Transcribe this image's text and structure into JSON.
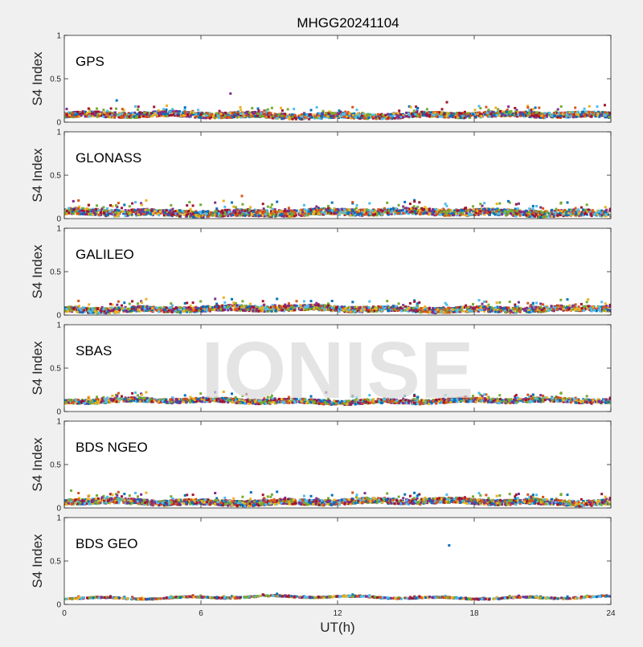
{
  "figure_title": "MHGG20241104",
  "watermark": "IONISE",
  "colors": {
    "background": "#f0f0f0",
    "axes_bg": "#ffffff",
    "watermark": "#d9d9d9",
    "series": [
      "#0072bd",
      "#d95319",
      "#edb120",
      "#7e2f8e",
      "#77ac30",
      "#4dbeee",
      "#a2142f"
    ]
  },
  "chart_data": [
    {
      "type": "scatter",
      "label": "GPS",
      "ylabel": "S4 Index",
      "xlabel": "",
      "xlim": [
        0,
        24
      ],
      "ylim": [
        0,
        1
      ],
      "yticks": [
        "0",
        "0.5",
        "1"
      ],
      "xticks": [],
      "baseline": 0.08,
      "spread": 0.05,
      "density": 2200,
      "outliers": [
        {
          "x": 2.3,
          "y": 0.25
        },
        {
          "x": 7.3,
          "y": 0.33
        },
        {
          "x": 16.8,
          "y": 0.23
        },
        {
          "x": 4.5,
          "y": 0.19
        },
        {
          "x": 23.4,
          "y": 0.18
        }
      ]
    },
    {
      "type": "scatter",
      "label": "GLONASS",
      "ylabel": "S4 Index",
      "xlabel": "",
      "xlim": [
        0,
        24
      ],
      "ylim": [
        0,
        1
      ],
      "yticks": [
        "0",
        "0.5",
        "1"
      ],
      "xticks": [],
      "baseline": 0.07,
      "spread": 0.06,
      "density": 2200,
      "outliers": [
        {
          "x": 7.8,
          "y": 0.26
        },
        {
          "x": 5.5,
          "y": 0.19
        },
        {
          "x": 19.5,
          "y": 0.2
        },
        {
          "x": 0.4,
          "y": 0.2
        }
      ]
    },
    {
      "type": "scatter",
      "label": "GALILEO",
      "ylabel": "S4 Index",
      "xlabel": "",
      "xlim": [
        0,
        24
      ],
      "ylim": [
        0,
        1
      ],
      "yticks": [
        "0",
        "0.5",
        "1"
      ],
      "xticks": [],
      "baseline": 0.07,
      "spread": 0.05,
      "density": 2000,
      "outliers": [
        {
          "x": 23.0,
          "y": 0.18
        },
        {
          "x": 23.6,
          "y": 0.15
        },
        {
          "x": 10.2,
          "y": 0.16
        }
      ]
    },
    {
      "type": "scatter",
      "label": "SBAS",
      "ylabel": "S4 Index",
      "xlabel": "",
      "xlim": [
        0,
        24
      ],
      "ylim": [
        0,
        1
      ],
      "yticks": [
        "0",
        "0.5",
        "1"
      ],
      "xticks": [],
      "baseline": 0.12,
      "spread": 0.04,
      "density": 1800,
      "outliers": [
        {
          "x": 11.5,
          "y": 0.22
        },
        {
          "x": 8.0,
          "y": 0.2
        }
      ]
    },
    {
      "type": "scatter",
      "label": "BDS NGEO",
      "ylabel": "S4 Index",
      "xlabel": "",
      "xlim": [
        0,
        24
      ],
      "ylim": [
        0,
        1
      ],
      "yticks": [
        "0",
        "0.5",
        "1"
      ],
      "xticks": [],
      "baseline": 0.07,
      "spread": 0.05,
      "density": 2200,
      "outliers": [
        {
          "x": 0.3,
          "y": 0.2
        },
        {
          "x": 8.2,
          "y": 0.18
        },
        {
          "x": 13.2,
          "y": 0.17
        },
        {
          "x": 23.6,
          "y": 0.16
        }
      ]
    },
    {
      "type": "scatter",
      "label": "BDS GEO",
      "ylabel": "S4 Index",
      "xlabel": "UT(h)",
      "xlim": [
        0,
        24
      ],
      "ylim": [
        0,
        1
      ],
      "yticks": [
        "0",
        "0.5",
        "1"
      ],
      "xticks": [
        "0",
        "6",
        "12",
        "18",
        "24"
      ],
      "baseline": 0.08,
      "spread": 0.01,
      "density": 900,
      "outliers": [
        {
          "x": 16.9,
          "y": 0.68
        }
      ]
    }
  ]
}
